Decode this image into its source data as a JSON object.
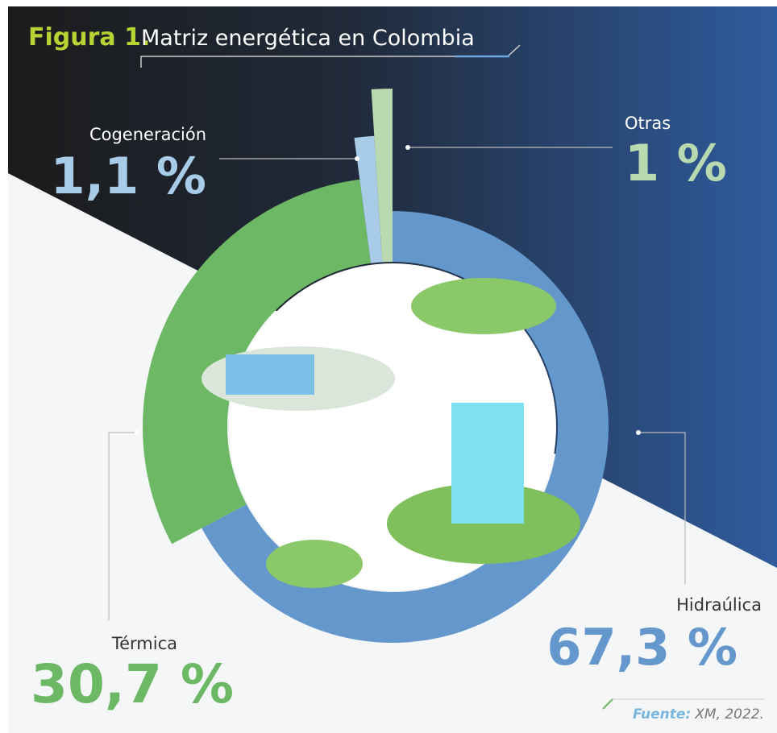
{
  "chart_data": {
    "type": "pie",
    "figure_label": "Figura 1.",
    "title": "Matriz energética en Colombia",
    "categories": [
      "Hidraúlica",
      "Térmica",
      "Cogeneración",
      "Otras"
    ],
    "values": [
      67.3,
      30.7,
      1.1,
      1
    ],
    "value_labels": [
      "67,3 %",
      "30,7 %",
      "1,1 %",
      "1 %"
    ],
    "colors": [
      "#6497cc",
      "#6cb865",
      "#a8cbe8",
      "#b9d9b0"
    ],
    "source_label": "Fuente:",
    "source": "XM, 2022."
  }
}
